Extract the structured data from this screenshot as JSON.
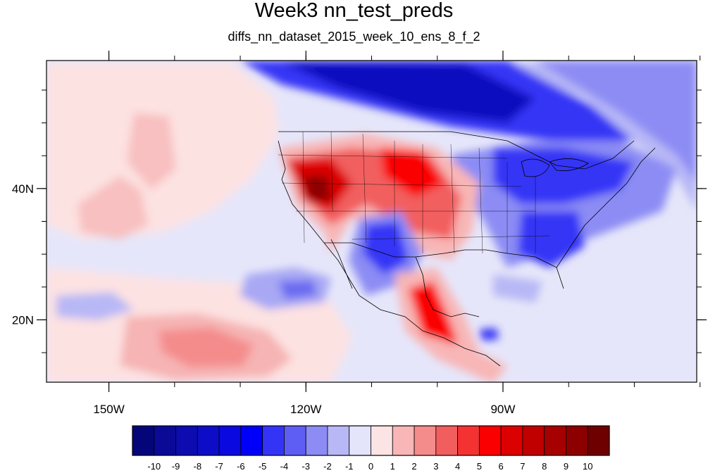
{
  "title": "Week3 nn_test_preds",
  "subtitle": "diffs_nn_dataset_2015_week_10_ens_8_f_2",
  "map": {
    "projection": "cylindrical equidistant",
    "lon_range": [
      -159.5,
      -60.5
    ],
    "lat_range": [
      10.5,
      59.5
    ],
    "lon_ticks": [
      {
        "value": -150,
        "label": "150W"
      },
      {
        "value": -120,
        "label": "120W"
      },
      {
        "value": -90,
        "label": "90W"
      }
    ],
    "lat_ticks": [
      {
        "value": 40,
        "label": "40N"
      },
      {
        "value": 20,
        "label": "20N"
      }
    ],
    "field_description_regions": [
      {
        "name": "Great Basin warm anomaly",
        "sign": "positive",
        "peak": 9
      },
      {
        "name": "Central Plains warm anomaly",
        "sign": "positive",
        "peak": 6
      },
      {
        "name": "Southern Mexico warm anomaly",
        "sign": "positive",
        "peak": 7
      },
      {
        "name": "Central Pacific subtropical warm anomaly",
        "sign": "positive",
        "peak": 3
      },
      {
        "name": "Canada cold anomaly",
        "sign": "negative",
        "peak": -7
      },
      {
        "name": "Great Lakes / Northeast cold anomaly",
        "sign": "negative",
        "peak": -5
      },
      {
        "name": "Southeast US cold anomaly",
        "sign": "negative",
        "peak": -4
      },
      {
        "name": "Northern Mexico cold anomaly",
        "sign": "negative",
        "peak": -5
      }
    ]
  },
  "colorbar": {
    "labels": [
      "-10",
      "-9",
      "-8",
      "-7",
      "-6",
      "-5",
      "-4",
      "-3",
      "-2",
      "-1",
      "0",
      "1",
      "2",
      "3",
      "4",
      "5",
      "6",
      "7",
      "8",
      "9",
      "10"
    ],
    "colors": [
      "#05057a",
      "#0a0a96",
      "#0c0cb0",
      "#0d0dc8",
      "#0a0ae0",
      "#0000fa",
      "#3434f6",
      "#5e5ef4",
      "#8c8cf4",
      "#b8b8f6",
      "#e4e4fa",
      "#fde4e4",
      "#f8b6b6",
      "#f48c8c",
      "#f25e5e",
      "#f43232",
      "#fa0000",
      "#dc0000",
      "#c00000",
      "#a60000",
      "#8c0000",
      "#6e0000"
    ]
  }
}
